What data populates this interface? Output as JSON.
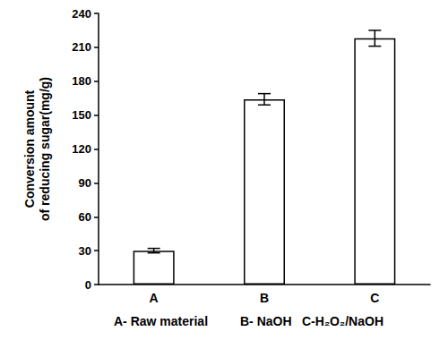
{
  "chart_data": {
    "type": "bar",
    "categories": [
      "A",
      "B",
      "C"
    ],
    "values": [
      30,
      164,
      218
    ],
    "errors": [
      2,
      5,
      7
    ],
    "color": "#ffffff",
    "ylabel": "Conversion amount\nof reducing sugar(mg/g)",
    "ylim": [
      0,
      240
    ],
    "yticks": [
      0,
      30,
      60,
      90,
      120,
      150,
      180,
      210,
      240
    ],
    "annotations": [
      "A- Raw material",
      "B- NaOH",
      "C-H₂O₂/NaOH"
    ],
    "grid": false
  }
}
